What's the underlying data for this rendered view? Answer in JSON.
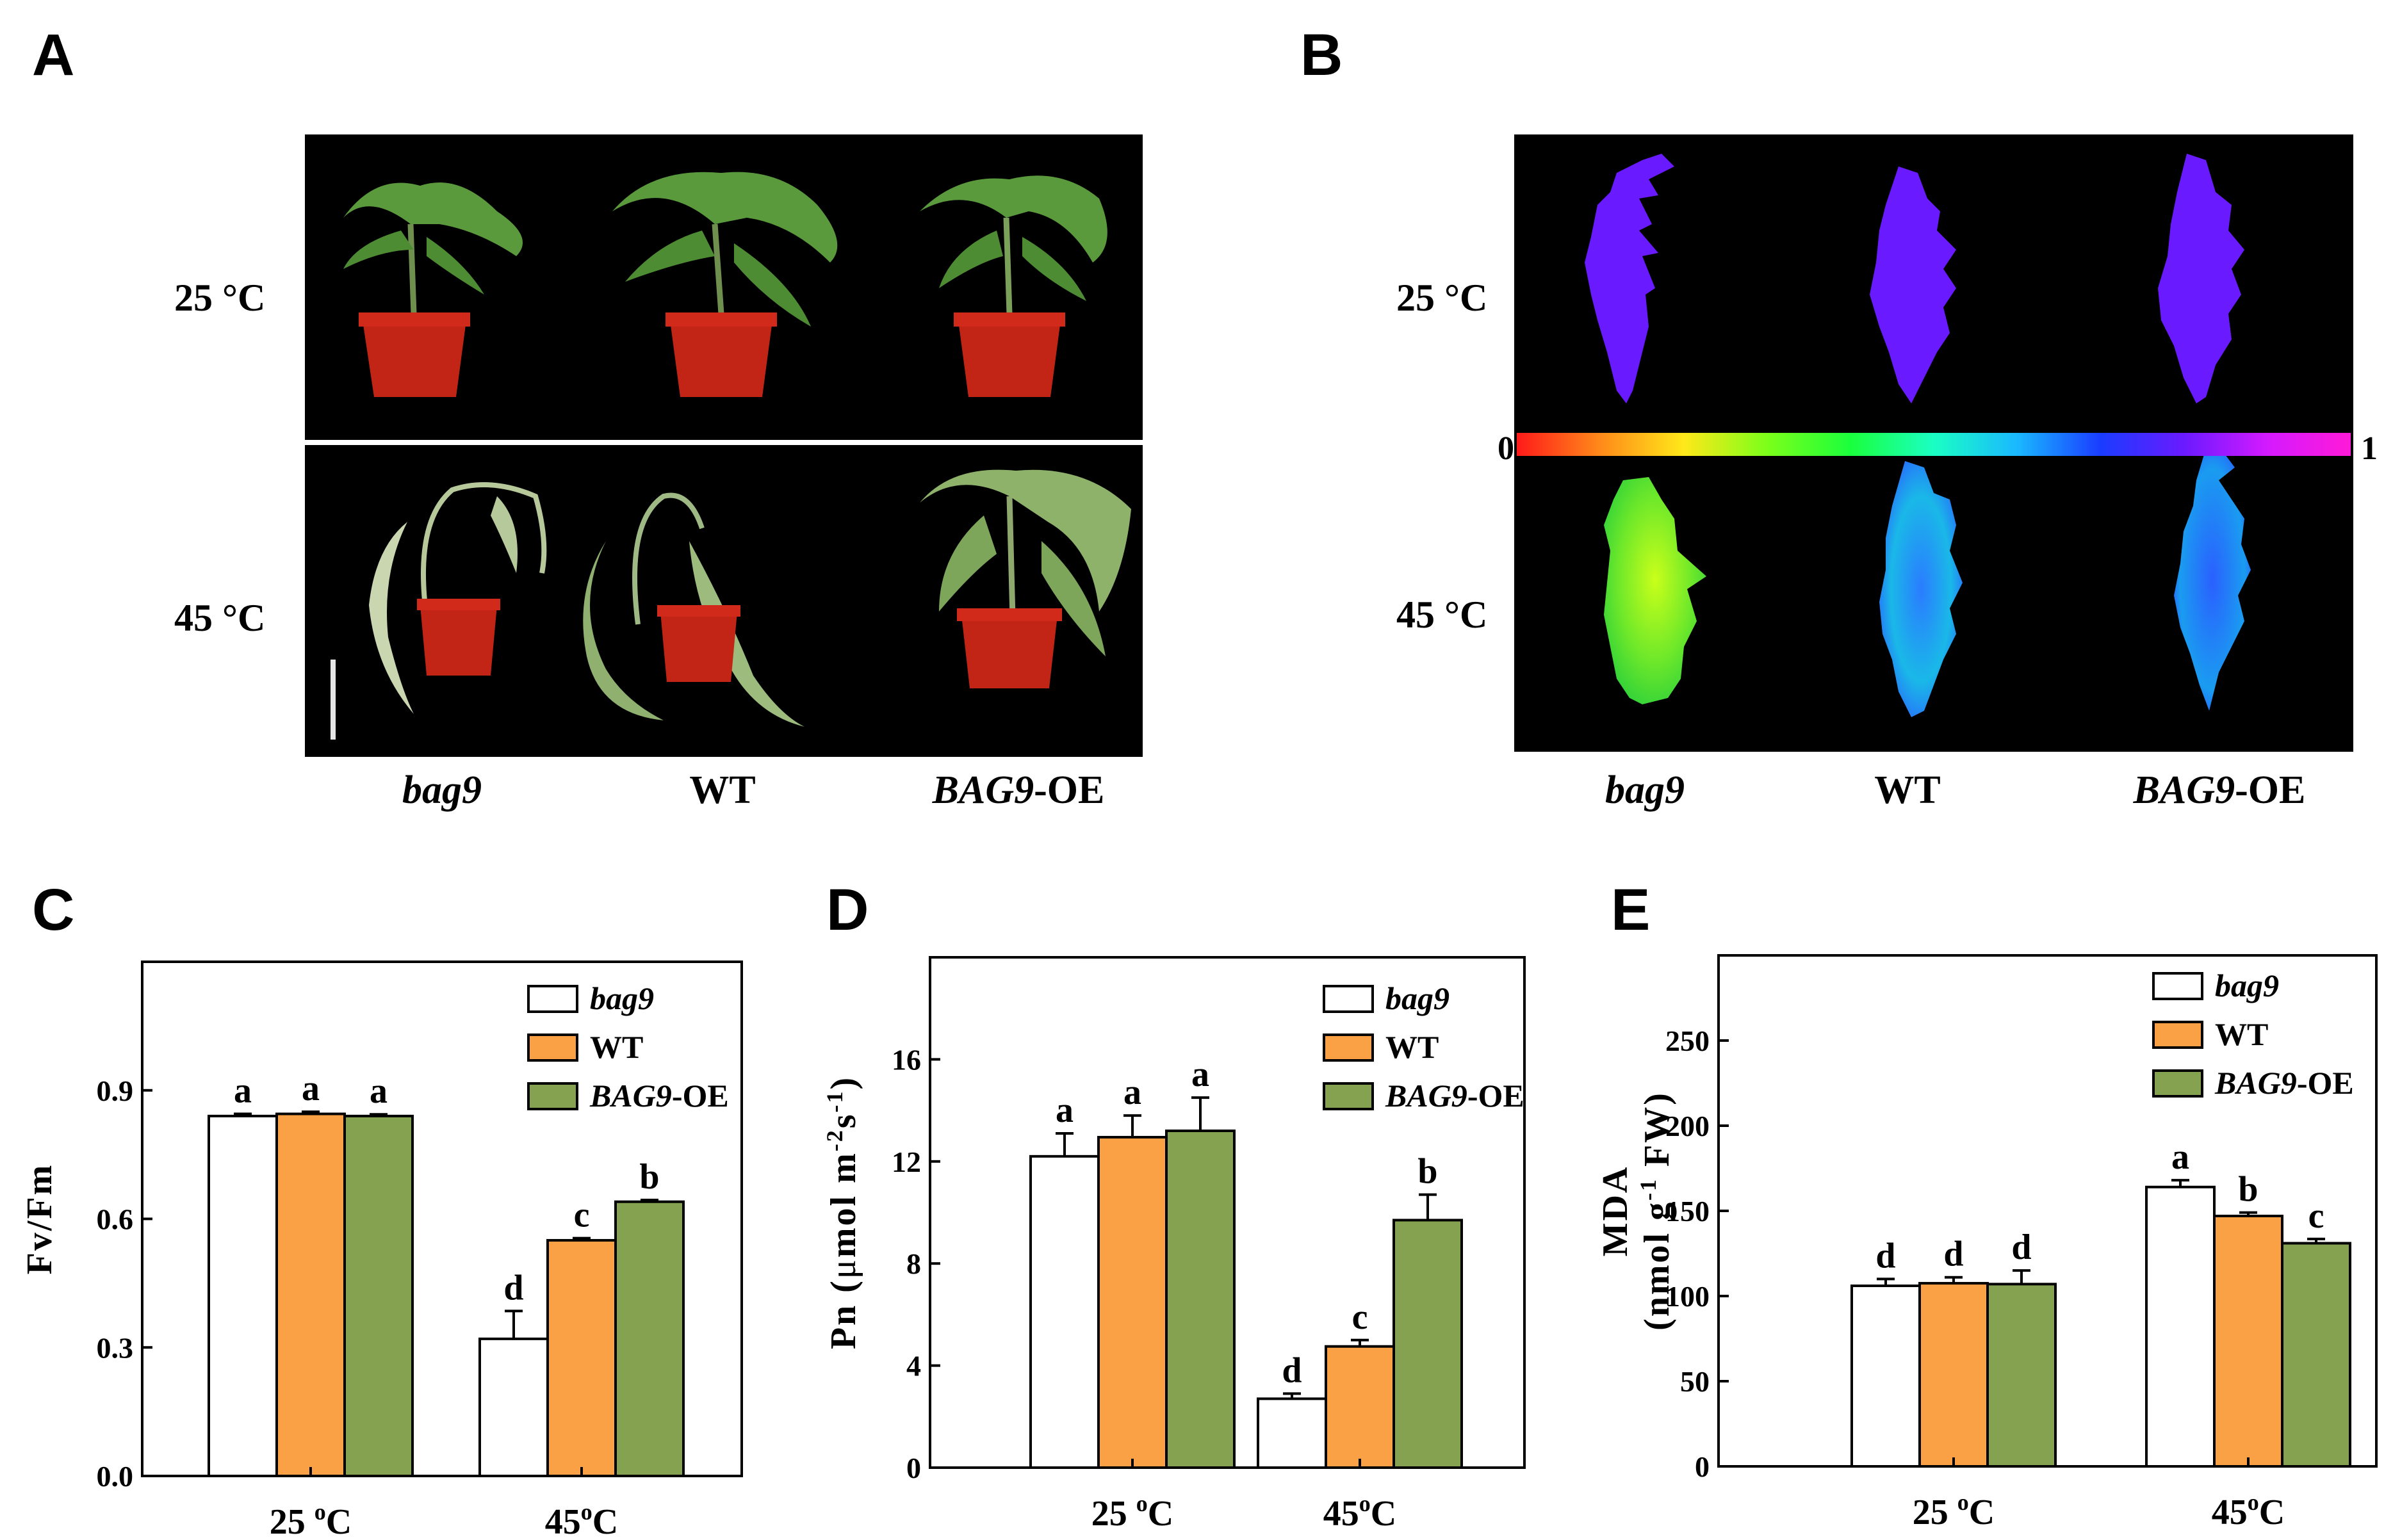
{
  "panels": {
    "A": {
      "letter": "A",
      "rows": [
        "25 °C",
        "45 °C"
      ],
      "columns": [
        {
          "text": "bag9",
          "italic": true
        },
        {
          "text": "WT",
          "italic": false
        },
        {
          "main": "BAG9",
          "suffix": "-OE"
        }
      ]
    },
    "B": {
      "letter": "B",
      "rows": [
        "25 °C",
        "45 °C"
      ],
      "colorbar": {
        "min_label": "0",
        "max_label": "1"
      },
      "columns": [
        {
          "text": "bag9",
          "italic": true
        },
        {
          "text": "WT",
          "italic": false
        },
        {
          "main": "BAG9",
          "suffix": "-OE"
        }
      ]
    },
    "C": {
      "letter": "C"
    },
    "D": {
      "letter": "D"
    },
    "E": {
      "letter": "E"
    }
  },
  "colors": {
    "bag9": "#ffffff",
    "WT": "#f9a144",
    "BAG9-OE": "#84a24f"
  },
  "chart_data": [
    {
      "id": "C",
      "type": "bar",
      "categories": [
        "25 °C",
        "45°C"
      ],
      "category_sup": [
        "o",
        "o"
      ],
      "ylabel": "Fv/Fm",
      "ylim": [
        0,
        1.2
      ],
      "yticks": [
        "0.0",
        "0.3",
        "0.6",
        "0.9"
      ],
      "series": [
        {
          "name": "bag9",
          "italic": true,
          "values": [
            0.84,
            0.32
          ],
          "errors": [
            0.005,
            0.065
          ],
          "letters": [
            "a",
            "d"
          ]
        },
        {
          "name": "WT",
          "values": [
            0.845,
            0.55
          ],
          "errors": [
            0.005,
            0.005
          ],
          "letters": [
            "a",
            "c"
          ]
        },
        {
          "name": "BAG9-OE",
          "italic_part": "BAG9",
          "values": [
            0.84,
            0.64
          ],
          "errors": [
            0.004,
            0.004
          ],
          "letters": [
            "a",
            "b"
          ]
        }
      ]
    },
    {
      "id": "D",
      "type": "bar",
      "categories": [
        "25 °C",
        "45°C"
      ],
      "category_sup": [
        "o",
        "o"
      ],
      "ylabel": "Pn (μmol m-2s-1)",
      "ylabel_parts": [
        "Pn (",
        "μ",
        "mol m",
        "-2",
        "s",
        "-1",
        ")"
      ],
      "ylim": [
        0,
        20
      ],
      "yticks": [
        "0",
        "4",
        "8",
        "12",
        "16"
      ],
      "series": [
        {
          "name": "bag9",
          "italic": true,
          "values": [
            12.2,
            2.7
          ],
          "errors": [
            0.9,
            0.2
          ],
          "letters": [
            "a",
            "d"
          ]
        },
        {
          "name": "WT",
          "values": [
            12.95,
            4.75
          ],
          "errors": [
            0.85,
            0.25
          ],
          "letters": [
            "a",
            "c"
          ]
        },
        {
          "name": "BAG9-OE",
          "italic_part": "BAG9",
          "values": [
            13.2,
            9.7
          ],
          "errors": [
            1.3,
            1.0
          ],
          "letters": [
            "a",
            "b"
          ]
        }
      ]
    },
    {
      "id": "E",
      "type": "bar",
      "categories": [
        "25 °C",
        "45°C"
      ],
      "category_sup": [
        "o",
        "o"
      ],
      "ylabel": "MDA",
      "ylabel2_parts": [
        "(nmol g",
        "-1",
        " FW)"
      ],
      "ylim": [
        0,
        300
      ],
      "yticks": [
        "0",
        "50",
        "100",
        "150",
        "200",
        "250"
      ],
      "series": [
        {
          "name": "bag9",
          "italic": true,
          "values": [
            106,
            164
          ],
          "errors": [
            4,
            4
          ],
          "letters": [
            "d",
            "a"
          ]
        },
        {
          "name": "WT",
          "values": [
            107.5,
            147
          ],
          "errors": [
            3.5,
            2
          ],
          "letters": [
            "d",
            "b"
          ]
        },
        {
          "name": "BAG9-OE",
          "italic_part": "BAG9",
          "values": [
            107,
            131
          ],
          "errors": [
            8,
            2.5
          ],
          "letters": [
            "d",
            "c"
          ]
        }
      ]
    }
  ]
}
